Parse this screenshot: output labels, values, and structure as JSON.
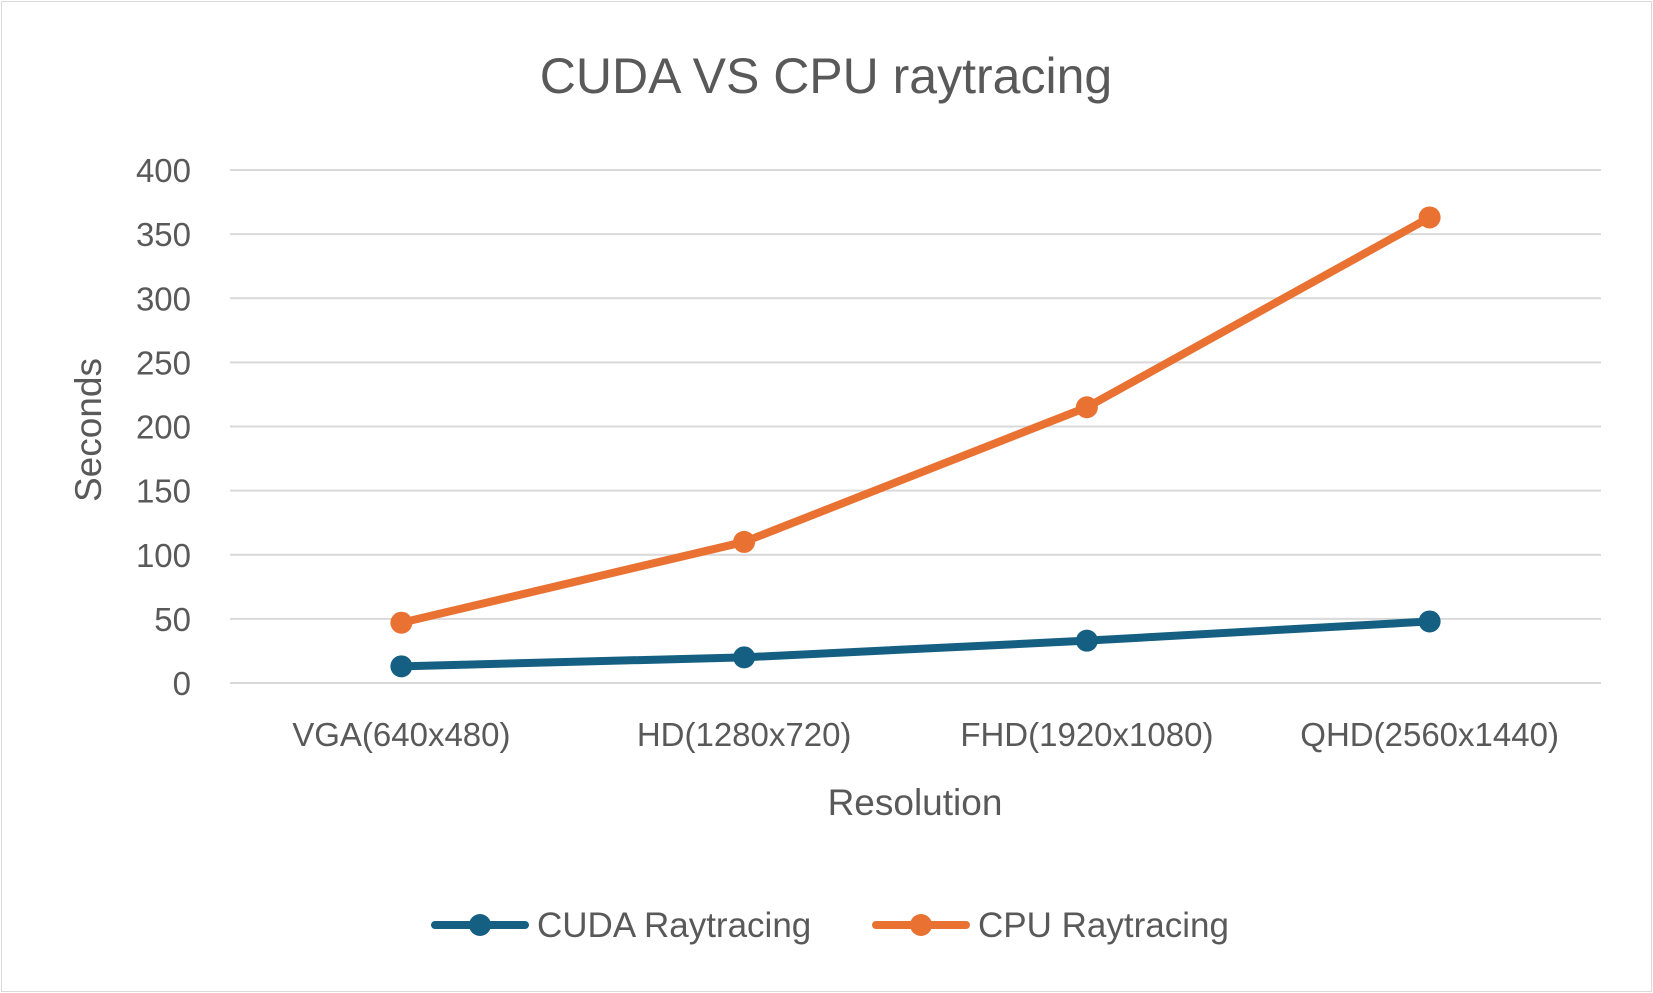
{
  "chart_data": {
    "type": "line",
    "title": "CUDA VS CPU raytracing",
    "xlabel": "Resolution",
    "ylabel": "Seconds",
    "categories": [
      "VGA(640x480)",
      "HD(1280x720)",
      "FHD(1920x1080)",
      "QHD(2560x1440)"
    ],
    "ylim": [
      0,
      400
    ],
    "yticks": [
      0,
      50,
      100,
      150,
      200,
      250,
      300,
      350,
      400
    ],
    "grid": true,
    "legend": "bottom",
    "series": [
      {
        "name": "CUDA Raytracing",
        "color": "#156082",
        "values": [
          13,
          20,
          33,
          48
        ]
      },
      {
        "name": "CPU Raytracing",
        "color": "#E97132",
        "values": [
          47,
          110,
          215,
          363
        ]
      }
    ]
  }
}
